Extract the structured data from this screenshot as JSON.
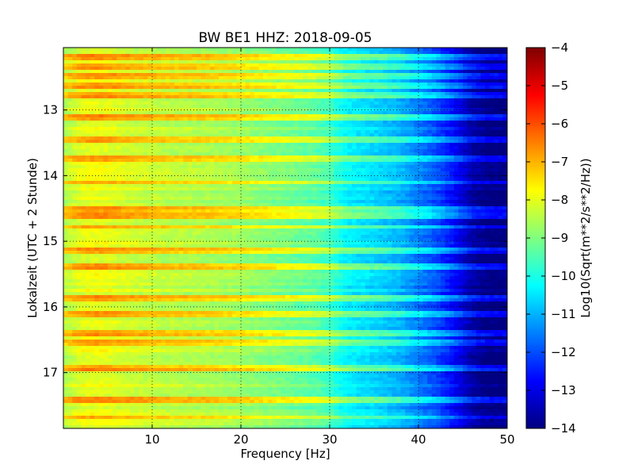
{
  "chart_data": {
    "type": "heatmap",
    "title": "BW BE1 HHZ: 2018-09-05",
    "xlabel": "Frequency [Hz]",
    "ylabel": "Lokalzeit (UTC + 2 Stunde)",
    "xlim": [
      0,
      50
    ],
    "ylim": [
      12.05,
      17.85
    ],
    "y_inverted": true,
    "x_ticks": [
      10,
      20,
      30,
      40,
      50
    ],
    "y_ticks": [
      13,
      14,
      15,
      16,
      17
    ],
    "grid": true,
    "colormap": "jet",
    "colorbar": {
      "label": "Log10(Sqrt(m**2/s**2/Hz))",
      "range": [
        -14,
        -4
      ],
      "ticks": [
        -4,
        -5,
        -6,
        -7,
        -8,
        -9,
        -10,
        -11,
        -12,
        -13,
        -14
      ]
    },
    "spectrum_profile": {
      "frequency_hz": [
        0,
        2,
        4,
        8,
        12,
        16,
        20,
        24,
        28,
        30,
        31,
        32,
        34,
        36,
        38,
        40,
        42,
        44,
        46,
        48,
        50
      ],
      "log10_amplitude": [
        -8.5,
        -8.0,
        -7.9,
        -8.2,
        -8.4,
        -8.5,
        -8.7,
        -9.0,
        -9.3,
        -9.6,
        -10.0,
        -10.3,
        -10.5,
        -10.7,
        -11.0,
        -11.5,
        -12.0,
        -12.7,
        -13.6,
        -14.0,
        -14.0
      ]
    },
    "bright_bands_hour": [
      12.2,
      12.35,
      12.5,
      12.62,
      12.78,
      13.1,
      13.45,
      13.75,
      14.1,
      14.5,
      14.62,
      14.78,
      15.15,
      15.4,
      15.85,
      16.1,
      16.4,
      16.55,
      16.95,
      17.42,
      17.68
    ]
  }
}
